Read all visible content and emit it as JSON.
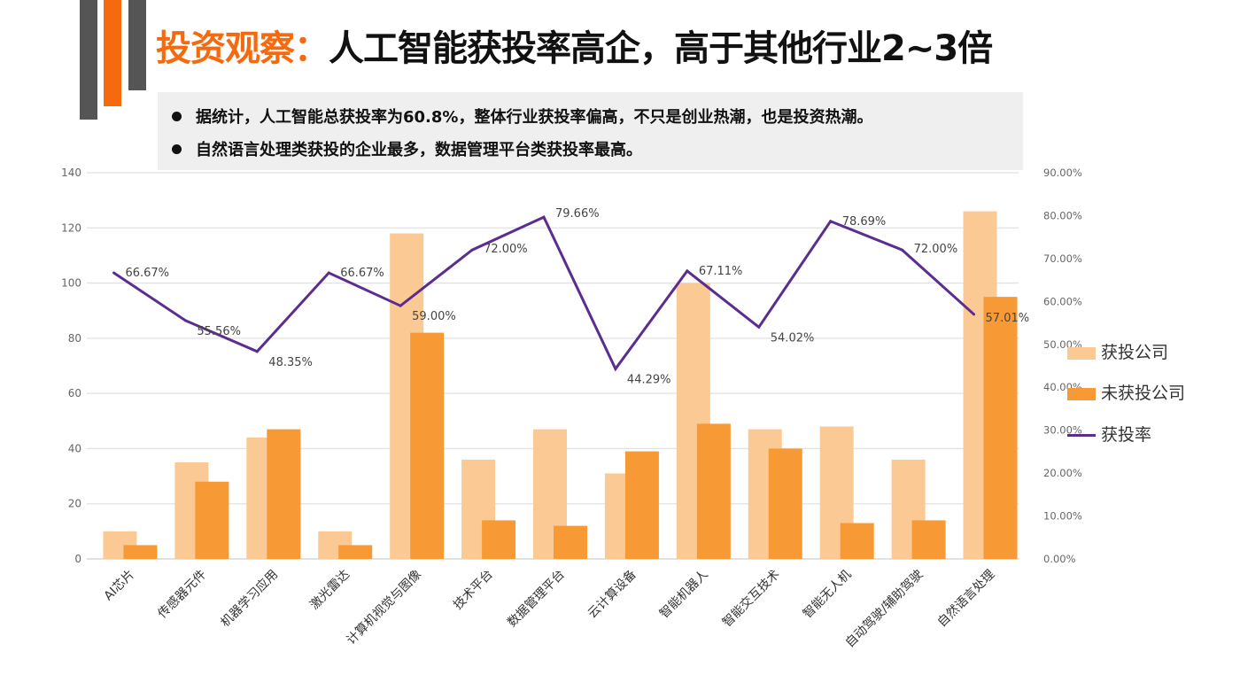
{
  "title": {
    "highlight": "投资观察：",
    "rest": "人工智能获投率高企，高于其他行业2~3倍"
  },
  "bullets": [
    "据统计，人工智能总获投率为60.8%，整体行业获投率偏高，不只是创业热潮，也是投资热潮。",
    "自然语言处理类获投的企业最多，数据管理平台类获投率最高。"
  ],
  "colors": {
    "accent": "#f56a0f",
    "deco_gray": "#555555",
    "funded": "#fbc993",
    "unfunded": "#f79a35",
    "rate": "#5b2d8e"
  },
  "chart_data": {
    "type": "bar+line",
    "categories": [
      "AI芯片",
      "传感器元件",
      "机器学习应用",
      "激光雷达",
      "计算机视觉与图像",
      "技术平台",
      "数据管理平台",
      "云计算设备",
      "智能机器人",
      "智能交互技术",
      "智能无人机",
      "自动驾驶/辅助驾驶",
      "自然语言处理"
    ],
    "series": [
      {
        "name": "获投公司",
        "type": "bar",
        "axis": "left",
        "values": [
          10,
          35,
          44,
          10,
          118,
          36,
          47,
          31,
          100,
          47,
          48,
          36,
          126
        ]
      },
      {
        "name": "未获投公司",
        "type": "bar",
        "axis": "left",
        "values": [
          5,
          28,
          47,
          5,
          82,
          14,
          12,
          39,
          49,
          40,
          13,
          14,
          95
        ]
      },
      {
        "name": "获投率",
        "type": "line",
        "axis": "right",
        "values": [
          66.67,
          55.56,
          48.35,
          66.67,
          59.0,
          72.0,
          79.66,
          44.29,
          67.11,
          54.02,
          78.69,
          72.0,
          57.01
        ],
        "labels": [
          "66.67%",
          "55.56%",
          "48.35%",
          "66.67%",
          "59.00%",
          "72.00%",
          "79.66%",
          "44.29%",
          "67.11%",
          "54.02%",
          "78.69%",
          "72.00%",
          "57.01%"
        ]
      }
    ],
    "left_axis": {
      "min": 0,
      "max": 140,
      "ticks": [
        "0",
        "20",
        "40",
        "60",
        "80",
        "100",
        "120",
        "140"
      ]
    },
    "right_axis": {
      "min": 0,
      "max": 90,
      "ticks": [
        "0.00%",
        "10.00%",
        "20.00%",
        "30.00%",
        "40.00%",
        "50.00%",
        "60.00%",
        "70.00%",
        "80.00%",
        "90.00%"
      ]
    },
    "grid": true,
    "legend_position": "right"
  }
}
